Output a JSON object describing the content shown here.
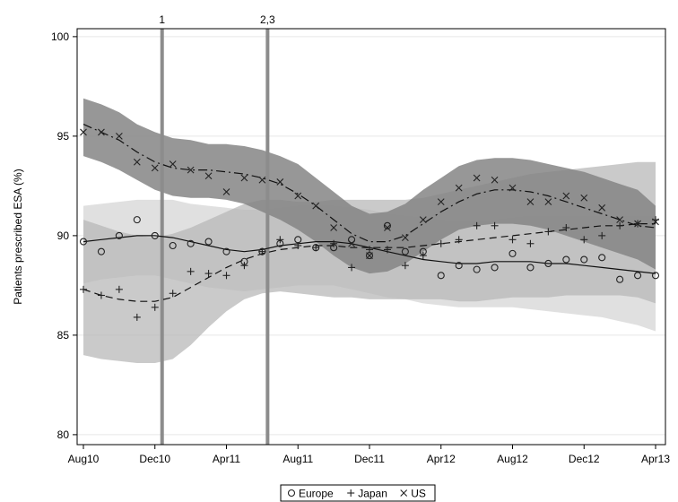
{
  "chart_data": {
    "type": "scatter",
    "title": "",
    "xlabel": "",
    "ylabel": "Patients prescribed ESA (%)",
    "x_ticks": [
      "Aug10",
      "Dec10",
      "Apr11",
      "Aug11",
      "Dec11",
      "Apr12",
      "Aug12",
      "Dec12",
      "Apr13"
    ],
    "y_ticks": [
      80,
      85,
      90,
      95,
      100
    ],
    "ylim": [
      79.5,
      100.4
    ],
    "grid": true,
    "legend_position": "bottom",
    "reference_lines": [
      {
        "label": "1",
        "x": 4.4
      },
      {
        "label": "2,3",
        "x": 10.3
      }
    ],
    "series": [
      {
        "name": "Europe",
        "marker": "circle",
        "line_style": "solid",
        "x": [
          0,
          1,
          2,
          3,
          4,
          5,
          6,
          7,
          8,
          9,
          10,
          11,
          12,
          13,
          14,
          15,
          16,
          17,
          18,
          19,
          20,
          21,
          22,
          23,
          24,
          25,
          26,
          27,
          28,
          29,
          30,
          31,
          32
        ],
        "values": [
          89.7,
          89.2,
          90.0,
          90.8,
          90.0,
          89.5,
          89.6,
          89.7,
          89.2,
          88.7,
          89.2,
          89.6,
          89.8,
          89.4,
          89.4,
          89.8,
          89.0,
          90.5,
          89.2,
          89.2,
          88.0,
          88.5,
          88.3,
          88.4,
          89.1,
          88.4,
          88.6,
          88.8,
          88.8,
          88.9,
          87.8,
          88.0,
          88.0
        ],
        "fit": [
          89.7,
          89.8,
          89.9,
          90.0,
          90.0,
          89.9,
          89.7,
          89.5,
          89.3,
          89.2,
          89.3,
          89.5,
          89.6,
          89.7,
          89.7,
          89.6,
          89.4,
          89.2,
          89.0,
          88.8,
          88.7,
          88.6,
          88.6,
          88.7,
          88.7,
          88.7,
          88.6,
          88.6,
          88.5,
          88.4,
          88.3,
          88.2,
          88.1
        ],
        "ci_lower": [
          87.6,
          87.8,
          87.9,
          88.0,
          88.0,
          87.8,
          87.6,
          87.4,
          87.3,
          87.2,
          87.3,
          87.4,
          87.5,
          87.5,
          87.5,
          87.3,
          87.1,
          86.9,
          86.8,
          86.6,
          86.5,
          86.4,
          86.4,
          86.4,
          86.4,
          86.3,
          86.2,
          86.1,
          86.0,
          85.9,
          85.7,
          85.5,
          85.2
        ],
        "ci_upper": [
          91.5,
          91.6,
          91.7,
          91.8,
          91.8,
          91.8,
          91.6,
          91.5,
          91.4,
          91.3,
          91.3,
          91.4,
          91.5,
          91.5,
          91.5,
          91.4,
          91.3,
          91.1,
          91.0,
          90.9,
          90.8,
          90.7,
          90.7,
          90.8,
          90.9,
          91.0,
          91.0,
          91.0,
          91.0,
          91.0,
          91.0,
          91.0,
          91.0
        ]
      },
      {
        "name": "Japan",
        "marker": "plus",
        "line_style": "dashed",
        "x": [
          0,
          1,
          2,
          3,
          4,
          5,
          6,
          7,
          8,
          9,
          10,
          11,
          12,
          13,
          14,
          15,
          16,
          17,
          18,
          19,
          20,
          21,
          22,
          23,
          24,
          25,
          26,
          27,
          28,
          29,
          30,
          31,
          32
        ],
        "values": [
          87.3,
          87.0,
          87.3,
          85.9,
          86.4,
          87.1,
          88.2,
          88.1,
          88.0,
          88.5,
          89.2,
          89.8,
          89.5,
          89.4,
          89.6,
          88.4,
          89.3,
          89.3,
          88.5,
          89.0,
          89.6,
          89.8,
          90.5,
          90.5,
          89.8,
          89.6,
          90.2,
          90.4,
          89.8,
          90.0,
          90.5,
          90.6,
          90.8
        ],
        "fit": [
          87.3,
          87.0,
          86.8,
          86.7,
          86.7,
          86.9,
          87.4,
          87.9,
          88.4,
          88.8,
          89.1,
          89.3,
          89.4,
          89.5,
          89.5,
          89.4,
          89.4,
          89.4,
          89.4,
          89.5,
          89.6,
          89.7,
          89.8,
          89.9,
          90.0,
          90.1,
          90.2,
          90.3,
          90.4,
          90.5,
          90.5,
          90.6,
          90.6
        ],
        "ci_lower": [
          84.0,
          83.8,
          83.7,
          83.6,
          83.6,
          83.8,
          84.5,
          85.4,
          86.2,
          86.8,
          87.1,
          87.2,
          87.1,
          87.0,
          86.9,
          86.9,
          86.8,
          86.8,
          86.8,
          86.8,
          86.8,
          86.7,
          86.7,
          86.8,
          86.9,
          86.9,
          86.9,
          87.0,
          87.0,
          87.0,
          87.0,
          86.9,
          86.6
        ],
        "ci_upper": [
          90.8,
          90.5,
          90.2,
          90.0,
          89.9,
          90.1,
          90.4,
          90.8,
          91.2,
          91.6,
          91.8,
          91.8,
          91.7,
          91.7,
          91.8,
          91.8,
          91.8,
          91.8,
          91.8,
          91.9,
          92.1,
          92.3,
          92.5,
          92.7,
          92.9,
          93.1,
          93.2,
          93.3,
          93.4,
          93.5,
          93.6,
          93.7,
          93.7
        ]
      },
      {
        "name": "US",
        "marker": "x",
        "line_style": "dashdot",
        "x": [
          0,
          1,
          2,
          3,
          4,
          5,
          6,
          7,
          8,
          9,
          10,
          11,
          12,
          13,
          14,
          15,
          16,
          17,
          18,
          19,
          20,
          21,
          22,
          23,
          24,
          25,
          26,
          27,
          28,
          29,
          30,
          31,
          32
        ],
        "values": [
          95.2,
          95.2,
          95.0,
          93.7,
          93.4,
          93.6,
          93.3,
          93.0,
          92.2,
          92.9,
          92.8,
          92.7,
          92.0,
          91.5,
          90.4,
          89.6,
          89.0,
          90.4,
          89.9,
          90.8,
          91.7,
          92.4,
          92.9,
          92.8,
          92.4,
          91.7,
          91.7,
          92.0,
          91.9,
          91.4,
          90.8,
          90.6,
          90.7
        ],
        "fit": [
          95.6,
          95.2,
          94.8,
          94.2,
          93.7,
          93.4,
          93.3,
          93.3,
          93.2,
          93.1,
          92.9,
          92.6,
          92.1,
          91.5,
          90.8,
          90.1,
          89.7,
          89.7,
          90.0,
          90.6,
          91.2,
          91.7,
          92.1,
          92.3,
          92.3,
          92.2,
          92.0,
          91.7,
          91.4,
          91.1,
          90.8,
          90.5,
          90.4
        ],
        "ci_lower": [
          94.0,
          93.7,
          93.3,
          92.8,
          92.3,
          92.0,
          91.9,
          91.9,
          91.8,
          91.6,
          91.2,
          90.8,
          90.3,
          89.7,
          89.0,
          88.4,
          88.1,
          88.2,
          88.6,
          89.2,
          89.8,
          90.3,
          90.5,
          90.6,
          90.6,
          90.5,
          90.3,
          90.0,
          89.7,
          89.4,
          89.1,
          88.8,
          88.3
        ],
        "ci_upper": [
          96.9,
          96.6,
          96.2,
          95.6,
          95.2,
          94.9,
          94.8,
          94.6,
          94.6,
          94.5,
          94.3,
          94.0,
          93.6,
          92.9,
          92.2,
          91.5,
          91.1,
          91.2,
          91.6,
          92.3,
          92.9,
          93.5,
          93.8,
          93.9,
          93.9,
          93.8,
          93.6,
          93.4,
          93.2,
          92.9,
          92.6,
          92.3,
          91.5
        ]
      }
    ]
  },
  "colors": {
    "band_europe": "#d6d6d6",
    "band_japan": "#b8b8b8",
    "band_us": "#858585",
    "ref_line": "#8c8c8c",
    "grid": "#e6e6e6",
    "marker": "#222222",
    "fit_line": "#111111"
  }
}
